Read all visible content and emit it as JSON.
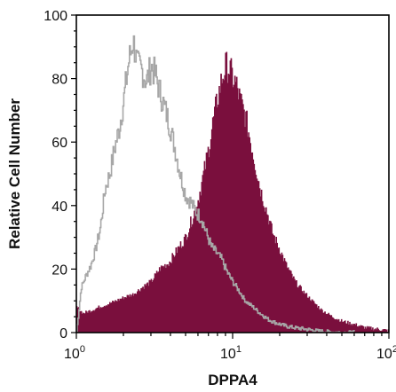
{
  "chart_data": {
    "type": "area",
    "xlabel": "DPPA4",
    "ylabel": "Relative Cell Number",
    "x_scale": "log",
    "xlim": [
      1,
      100
    ],
    "ylim": [
      0,
      100
    ],
    "x_ticks": [
      {
        "value": 1,
        "base": "10",
        "exp": "0"
      },
      {
        "value": 10,
        "base": "10",
        "exp": "1"
      },
      {
        "value": 100,
        "base": "10",
        "exp": "2"
      }
    ],
    "y_ticks": [
      0,
      20,
      40,
      60,
      80,
      100
    ],
    "grid": false,
    "legend": "none",
    "series": [
      {
        "role": "isotype-control",
        "style": "outline",
        "color": "#a7a7a7",
        "x": [
          1.0,
          1.07,
          1.15,
          1.23,
          1.32,
          1.42,
          1.52,
          1.63,
          1.75,
          1.87,
          2.0,
          2.15,
          2.3,
          2.45,
          2.6,
          2.8,
          3.0,
          3.2,
          3.45,
          3.7,
          4.0,
          4.3,
          4.6,
          5.0,
          5.4,
          5.8,
          6.3,
          6.8,
          7.3,
          7.9,
          8.5,
          9.2,
          10.0,
          11.0,
          12.0,
          13.5,
          15.0,
          17.0,
          19.0,
          22.0,
          25.0,
          30.0,
          35.0,
          42.0,
          50.0,
          60.0
        ],
        "y": [
          0,
          14,
          18,
          21,
          26,
          33,
          45,
          50,
          58,
          64,
          73,
          85,
          92,
          84,
          83,
          79,
          84,
          81,
          75,
          70,
          64,
          57,
          50,
          43,
          41,
          38,
          36,
          31,
          27,
          25,
          23,
          19,
          16,
          13,
          10,
          8,
          6,
          4,
          3,
          2,
          1.5,
          1,
          0.5,
          0.2,
          0,
          0
        ]
      },
      {
        "role": "DPPA4-stained",
        "style": "filled",
        "color": "#7a0f3d",
        "x": [
          1.0,
          1.1,
          1.25,
          1.4,
          1.6,
          1.8,
          2.0,
          2.3,
          2.6,
          3.0,
          3.4,
          3.9,
          4.4,
          5.0,
          5.5,
          6.0,
          6.5,
          7.0,
          7.5,
          8.0,
          8.5,
          9.0,
          9.5,
          10.0,
          10.5,
          11.0,
          12.0,
          13.0,
          14.0,
          15.0,
          16.5,
          18.0,
          20.0,
          22.0,
          25.0,
          28.0,
          32.0,
          37.0,
          43.0,
          50.0,
          60.0,
          70.0,
          85.0,
          100.0
        ],
        "y": [
          8,
          6,
          7,
          8,
          9,
          10,
          11,
          12,
          14,
          16,
          20,
          22,
          26,
          30,
          36,
          42,
          50,
          58,
          67,
          74,
          80,
          84,
          83,
          80,
          78,
          74,
          68,
          60,
          52,
          45,
          38,
          31,
          26,
          21,
          16,
          13,
          10,
          7,
          5,
          3.5,
          2.5,
          1.5,
          1,
          0.5
        ]
      }
    ]
  }
}
